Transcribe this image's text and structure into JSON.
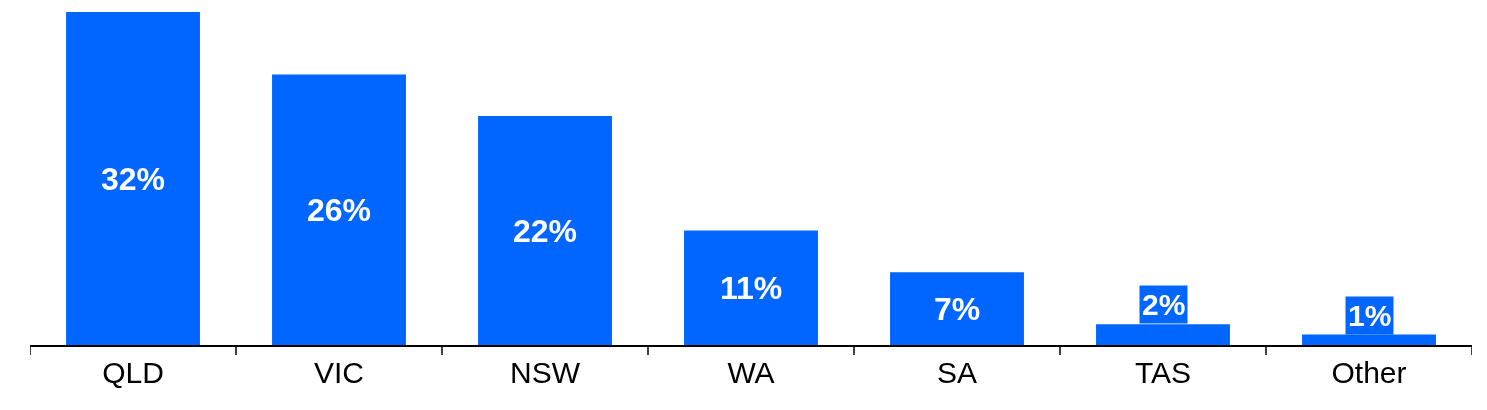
{
  "chart_data": {
    "type": "bar",
    "categories": [
      "QLD",
      "VIC",
      "NSW",
      "WA",
      "SA",
      "TAS",
      "Other"
    ],
    "values": [
      32,
      26,
      22,
      11,
      7,
      2,
      1
    ],
    "value_labels": [
      "32%",
      "26%",
      "22%",
      "11%",
      "7%",
      "2%",
      "1%"
    ],
    "color": "#0066ff",
    "ylim": [
      0,
      32
    ]
  }
}
